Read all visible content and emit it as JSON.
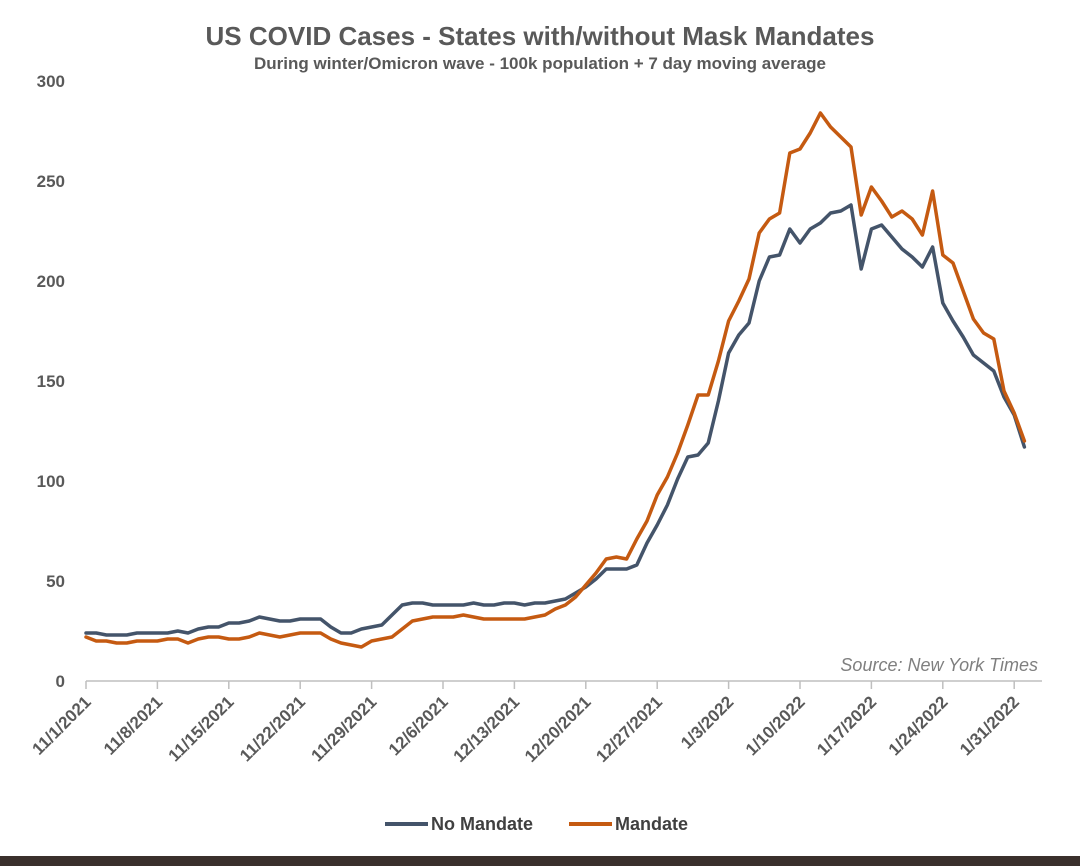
{
  "chart_data": {
    "type": "line",
    "title": "US COVID Cases - States with/without Mask Mandates",
    "subtitle": "During winter/Omicron wave - 100k population + 7 day moving average",
    "source": "Source: New York Times",
    "ylim": [
      0,
      300
    ],
    "yticks": [
      "0",
      "50",
      "100",
      "150",
      "200",
      "250",
      "300"
    ],
    "xticks": [
      "11/1/2021",
      "11/8/2021",
      "11/15/2021",
      "11/22/2021",
      "11/29/2021",
      "12/6/2021",
      "12/13/2021",
      "12/20/2021",
      "12/27/2021",
      "1/3/2022",
      "1/10/2022",
      "1/17/2022",
      "1/24/2022",
      "1/31/2022"
    ],
    "x_start": "11/1/2021",
    "legend": "bottom-center",
    "series": [
      {
        "name": "No Mandate",
        "color": "#44546a",
        "values": [
          24,
          24,
          23,
          23,
          23,
          24,
          24,
          24,
          24,
          25,
          24,
          26,
          27,
          27,
          29,
          29,
          30,
          32,
          31,
          30,
          30,
          31,
          31,
          31,
          27,
          24,
          24,
          26,
          27,
          28,
          33,
          38,
          39,
          39,
          38,
          38,
          38,
          38,
          39,
          38,
          38,
          39,
          39,
          38,
          39,
          39,
          40,
          41,
          44,
          47,
          51,
          56,
          56,
          56,
          58,
          69,
          78,
          88,
          101,
          112,
          113,
          119,
          140,
          164,
          173,
          179,
          200,
          212,
          213,
          226,
          219,
          226,
          229,
          234,
          235,
          238,
          206,
          226,
          228,
          222,
          216,
          212,
          207,
          217,
          189,
          180,
          172,
          163,
          159,
          155,
          142,
          133,
          117
        ]
      },
      {
        "name": "Mandate",
        "color": "#c55a11",
        "values": [
          22,
          20,
          20,
          19,
          19,
          20,
          20,
          20,
          21,
          21,
          19,
          21,
          22,
          22,
          21,
          21,
          22,
          24,
          23,
          22,
          23,
          24,
          24,
          24,
          21,
          19,
          18,
          17,
          20,
          21,
          22,
          26,
          30,
          31,
          32,
          32,
          32,
          33,
          32,
          31,
          31,
          31,
          31,
          31,
          32,
          33,
          36,
          38,
          42,
          48,
          54,
          61,
          62,
          61,
          71,
          80,
          93,
          102,
          114,
          128,
          143,
          143,
          160,
          180,
          190,
          201,
          224,
          231,
          234,
          264,
          266,
          274,
          284,
          277,
          272,
          267,
          233,
          247,
          240,
          232,
          235,
          231,
          223,
          245,
          213,
          209,
          195,
          181,
          174,
          171,
          145,
          134,
          120
        ]
      }
    ]
  }
}
